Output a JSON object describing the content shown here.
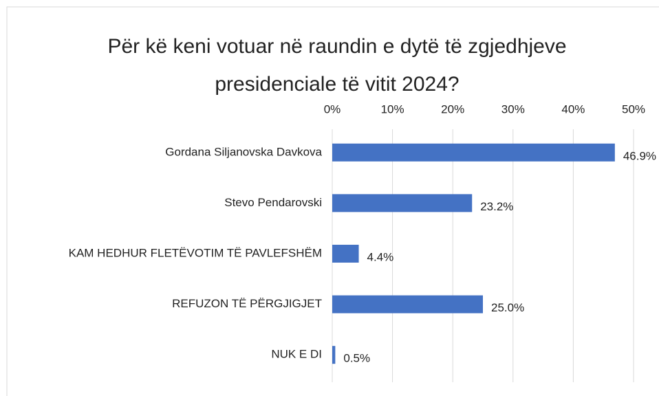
{
  "chart_data": {
    "type": "bar",
    "orientation": "horizontal",
    "title": "Për kë keni votuar në raundin e dytë të zgjedhjeve presidenciale të vitit 2024?",
    "categories": [
      "Gordana Siljanovska Davkova",
      "Stevo Pendarovski",
      "KAM HEDHUR FLETËVOTIM TË PAVLEFSHËM",
      "REFUZON TË PËRGJIGJET",
      "NUK E DI"
    ],
    "values": [
      46.9,
      23.2,
      4.4,
      25.0,
      0.5
    ],
    "value_labels": [
      "46.9%",
      "23.2%",
      "4.4%",
      "25.0%",
      "0.5%"
    ],
    "color": "#4472c4",
    "xlim": [
      0,
      50
    ],
    "xticks": [
      {
        "value": 0,
        "label": "0%"
      },
      {
        "value": 10,
        "label": "10%"
      },
      {
        "value": 20,
        "label": "20%"
      },
      {
        "value": 30,
        "label": "30%"
      },
      {
        "value": 40,
        "label": "40%"
      },
      {
        "value": 50,
        "label": "50%"
      }
    ],
    "grid": true
  }
}
